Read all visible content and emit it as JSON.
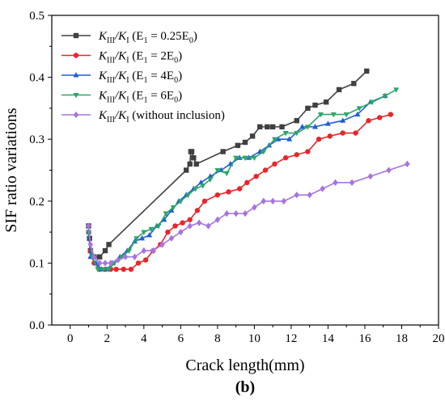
{
  "chart_data": {
    "type": "line",
    "xlabel": "Crack length(mm)",
    "ylabel": "SIF ratio variations",
    "panel_label": "(b)",
    "xlim": [
      -1,
      20
    ],
    "ylim": [
      0,
      0.5
    ],
    "xticks": [
      0,
      2,
      4,
      6,
      8,
      10,
      12,
      14,
      16,
      18,
      20
    ],
    "yticks": [
      0.0,
      0.1,
      0.2,
      0.3,
      0.4,
      0.5
    ],
    "legend_position": "top-left",
    "series": [
      {
        "name": "K_III/K_I (E_1 = 0.25E_0)",
        "legend_main": "K",
        "legend_sub1": "III",
        "legend_mid": "/K",
        "legend_sub2": "I",
        "legend_pre": " (E",
        "legend_sub3": "1",
        "legend_post": " = 0.25E",
        "legend_sub4": "0",
        "legend_end": ")",
        "color": "#404040",
        "marker": "square",
        "x": [
          1.0,
          1.05,
          1.1,
          1.3,
          1.6,
          1.9,
          2.1,
          6.3,
          6.5,
          6.55,
          6.6,
          6.7,
          6.85,
          8.3,
          9.1,
          9.5,
          9.9,
          10.3,
          10.7,
          11.0,
          11.5,
          12.3,
          12.9,
          13.3,
          13.9,
          14.6,
          15.4,
          16.1
        ],
        "y": [
          0.16,
          0.14,
          0.12,
          0.11,
          0.11,
          0.12,
          0.13,
          0.25,
          0.26,
          0.28,
          0.28,
          0.27,
          0.26,
          0.28,
          0.29,
          0.295,
          0.305,
          0.32,
          0.32,
          0.32,
          0.32,
          0.33,
          0.35,
          0.355,
          0.36,
          0.38,
          0.39,
          0.41
        ]
      },
      {
        "name": "K_III/K_I (E_1 = 2E_0)",
        "legend_main": "K",
        "legend_sub1": "III",
        "legend_mid": "/K",
        "legend_sub2": "I",
        "legend_pre": " (E",
        "legend_sub3": "1",
        "legend_post": " = 2E",
        "legend_sub4": "0",
        "legend_end": ")",
        "color": "#e8262b",
        "marker": "circle",
        "x": [
          1.0,
          1.1,
          1.3,
          1.6,
          1.9,
          2.2,
          2.5,
          2.9,
          3.3,
          3.7,
          4.1,
          4.5,
          4.9,
          5.3,
          5.7,
          6.1,
          6.5,
          6.9,
          7.3,
          8.0,
          8.6,
          9.2,
          9.6,
          10.1,
          10.6,
          11.1,
          11.7,
          12.3,
          12.9,
          13.5,
          14.1,
          14.8,
          15.5,
          16.2,
          16.8,
          17.4
        ],
        "y": [
          0.15,
          0.12,
          0.1,
          0.09,
          0.09,
          0.09,
          0.09,
          0.09,
          0.09,
          0.1,
          0.105,
          0.12,
          0.13,
          0.15,
          0.16,
          0.165,
          0.17,
          0.185,
          0.2,
          0.21,
          0.215,
          0.22,
          0.23,
          0.24,
          0.25,
          0.26,
          0.27,
          0.275,
          0.28,
          0.3,
          0.305,
          0.31,
          0.31,
          0.33,
          0.335,
          0.34
        ]
      },
      {
        "name": "K_III/K_I (E_1 = 4E_0)",
        "legend_main": "K",
        "legend_sub1": "III",
        "legend_mid": "/K",
        "legend_sub2": "I",
        "legend_pre": " (E",
        "legend_sub3": "1",
        "legend_post": " = 4E",
        "legend_sub4": "0",
        "legend_end": ")",
        "color": "#1f5fd6",
        "marker": "triangle-up",
        "x": [
          1.0,
          1.1,
          1.4,
          1.7,
          2.0,
          2.3,
          2.7,
          3.1,
          3.5,
          3.9,
          4.3,
          4.7,
          5.1,
          5.5,
          5.9,
          6.3,
          6.7,
          7.1,
          7.6,
          8.2,
          8.7,
          9.2,
          9.7,
          10.3,
          10.8,
          11.3,
          11.9,
          12.6,
          13.3,
          14.0,
          14.8,
          15.6,
          16.3,
          17.1
        ],
        "y": [
          0.15,
          0.11,
          0.1,
          0.09,
          0.09,
          0.1,
          0.11,
          0.12,
          0.135,
          0.14,
          0.145,
          0.16,
          0.17,
          0.185,
          0.2,
          0.21,
          0.22,
          0.23,
          0.24,
          0.25,
          0.26,
          0.27,
          0.27,
          0.28,
          0.29,
          0.3,
          0.3,
          0.32,
          0.32,
          0.325,
          0.33,
          0.34,
          0.36,
          0.37
        ]
      },
      {
        "name": "K_III/K_I (E_1 = 6E_0)",
        "legend_main": "K",
        "legend_sub1": "III",
        "legend_mid": "/K",
        "legend_sub2": "I",
        "legend_pre": " (E",
        "legend_sub3": "1",
        "legend_post": " = 6E",
        "legend_sub4": "0",
        "legend_end": ")",
        "color": "#2ea568",
        "marker": "triangle-down",
        "x": [
          1.0,
          1.2,
          1.5,
          1.8,
          2.1,
          2.4,
          2.8,
          3.2,
          3.6,
          4.0,
          4.4,
          4.8,
          5.2,
          5.6,
          6.0,
          6.4,
          6.8,
          7.2,
          7.6,
          8.0,
          8.5,
          9.0,
          9.5,
          10.0,
          10.5,
          11.1,
          11.7,
          12.3,
          12.9,
          13.6,
          14.3,
          15.0,
          15.7,
          16.4,
          17.1,
          17.7
        ],
        "y": [
          0.15,
          0.11,
          0.09,
          0.09,
          0.09,
          0.1,
          0.11,
          0.12,
          0.14,
          0.15,
          0.155,
          0.16,
          0.18,
          0.19,
          0.2,
          0.21,
          0.22,
          0.225,
          0.235,
          0.25,
          0.245,
          0.27,
          0.27,
          0.27,
          0.28,
          0.3,
          0.31,
          0.31,
          0.32,
          0.34,
          0.34,
          0.34,
          0.35,
          0.36,
          0.37,
          0.38
        ]
      },
      {
        "name": "K_III/K_I (without inclusion)",
        "legend_main": "K",
        "legend_sub1": "III",
        "legend_mid": "/K",
        "legend_sub2": "I",
        "legend_pre": " (without inclusion)",
        "legend_sub3": "",
        "legend_post": "",
        "legend_sub4": "",
        "legend_end": "",
        "color": "#a673e0",
        "marker": "diamond",
        "x": [
          1.0,
          1.1,
          1.3,
          1.6,
          1.9,
          2.2,
          2.6,
          3.0,
          3.5,
          4.0,
          4.5,
          5.0,
          5.5,
          6.0,
          6.5,
          7.0,
          7.5,
          8.0,
          8.5,
          9.0,
          9.5,
          10.0,
          10.5,
          11.0,
          11.6,
          12.3,
          13.0,
          13.7,
          14.4,
          15.3,
          16.3,
          17.3,
          18.3
        ],
        "y": [
          0.16,
          0.13,
          0.11,
          0.1,
          0.1,
          0.1,
          0.105,
          0.11,
          0.11,
          0.12,
          0.12,
          0.13,
          0.14,
          0.15,
          0.16,
          0.165,
          0.16,
          0.17,
          0.18,
          0.18,
          0.18,
          0.19,
          0.2,
          0.2,
          0.2,
          0.21,
          0.21,
          0.22,
          0.23,
          0.23,
          0.24,
          0.25,
          0.26
        ]
      }
    ]
  }
}
